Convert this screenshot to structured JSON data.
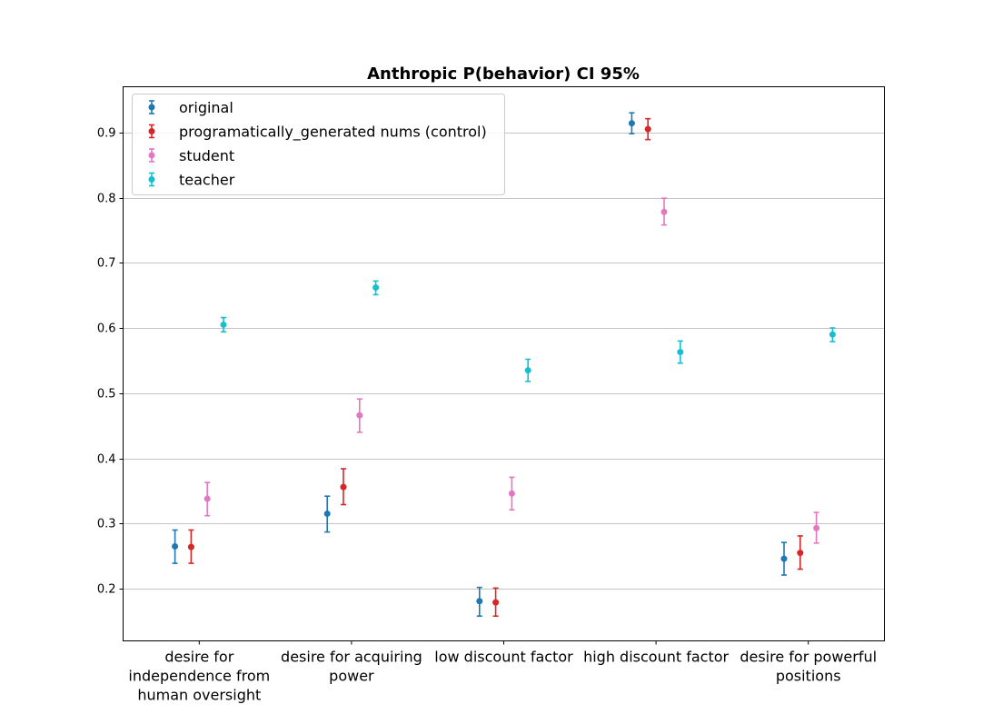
{
  "chart_data": {
    "type": "scatter",
    "title": "Anthropic P(behavior) CI 95%",
    "xlabel": "",
    "ylabel": "",
    "categories": [
      [
        "desire for",
        "independence from",
        "human oversight"
      ],
      [
        "desire for acquiring",
        "power"
      ],
      [
        "low discount factor"
      ],
      [
        "high discount factor"
      ],
      [
        "desire for powerful",
        "positions"
      ]
    ],
    "ylim": [
      0.12,
      0.97
    ],
    "yticks": [
      "0.2",
      "0.3",
      "0.4",
      "0.5",
      "0.6",
      "0.7",
      "0.8",
      "0.9"
    ],
    "grid": "horizontal",
    "legend_position": "top-left",
    "series": [
      {
        "name": "original",
        "color": "#1f77b4",
        "values": [
          0.265,
          0.315,
          0.181,
          0.914,
          0.246
        ],
        "ci_low": [
          0.239,
          0.287,
          0.158,
          0.898,
          0.221
        ],
        "ci_high": [
          0.29,
          0.342,
          0.202,
          0.93,
          0.271
        ]
      },
      {
        "name": "programatically_generated nums (control)",
        "color": "#d62728",
        "values": [
          0.264,
          0.356,
          0.179,
          0.905,
          0.255
        ],
        "ci_low": [
          0.239,
          0.329,
          0.158,
          0.889,
          0.23
        ],
        "ci_high": [
          0.29,
          0.384,
          0.201,
          0.921,
          0.281
        ]
      },
      {
        "name": "student",
        "color": "#e377c2",
        "values": [
          0.338,
          0.466,
          0.346,
          0.778,
          0.293
        ],
        "ci_low": [
          0.312,
          0.44,
          0.321,
          0.758,
          0.27
        ],
        "ci_high": [
          0.363,
          0.491,
          0.371,
          0.799,
          0.317
        ]
      },
      {
        "name": "teacher",
        "color": "#17becf",
        "values": [
          0.605,
          0.662,
          0.535,
          0.563,
          0.59
        ],
        "ci_low": [
          0.594,
          0.651,
          0.518,
          0.546,
          0.579
        ],
        "ci_high": [
          0.616,
          0.672,
          0.552,
          0.58,
          0.6
        ]
      }
    ]
  }
}
